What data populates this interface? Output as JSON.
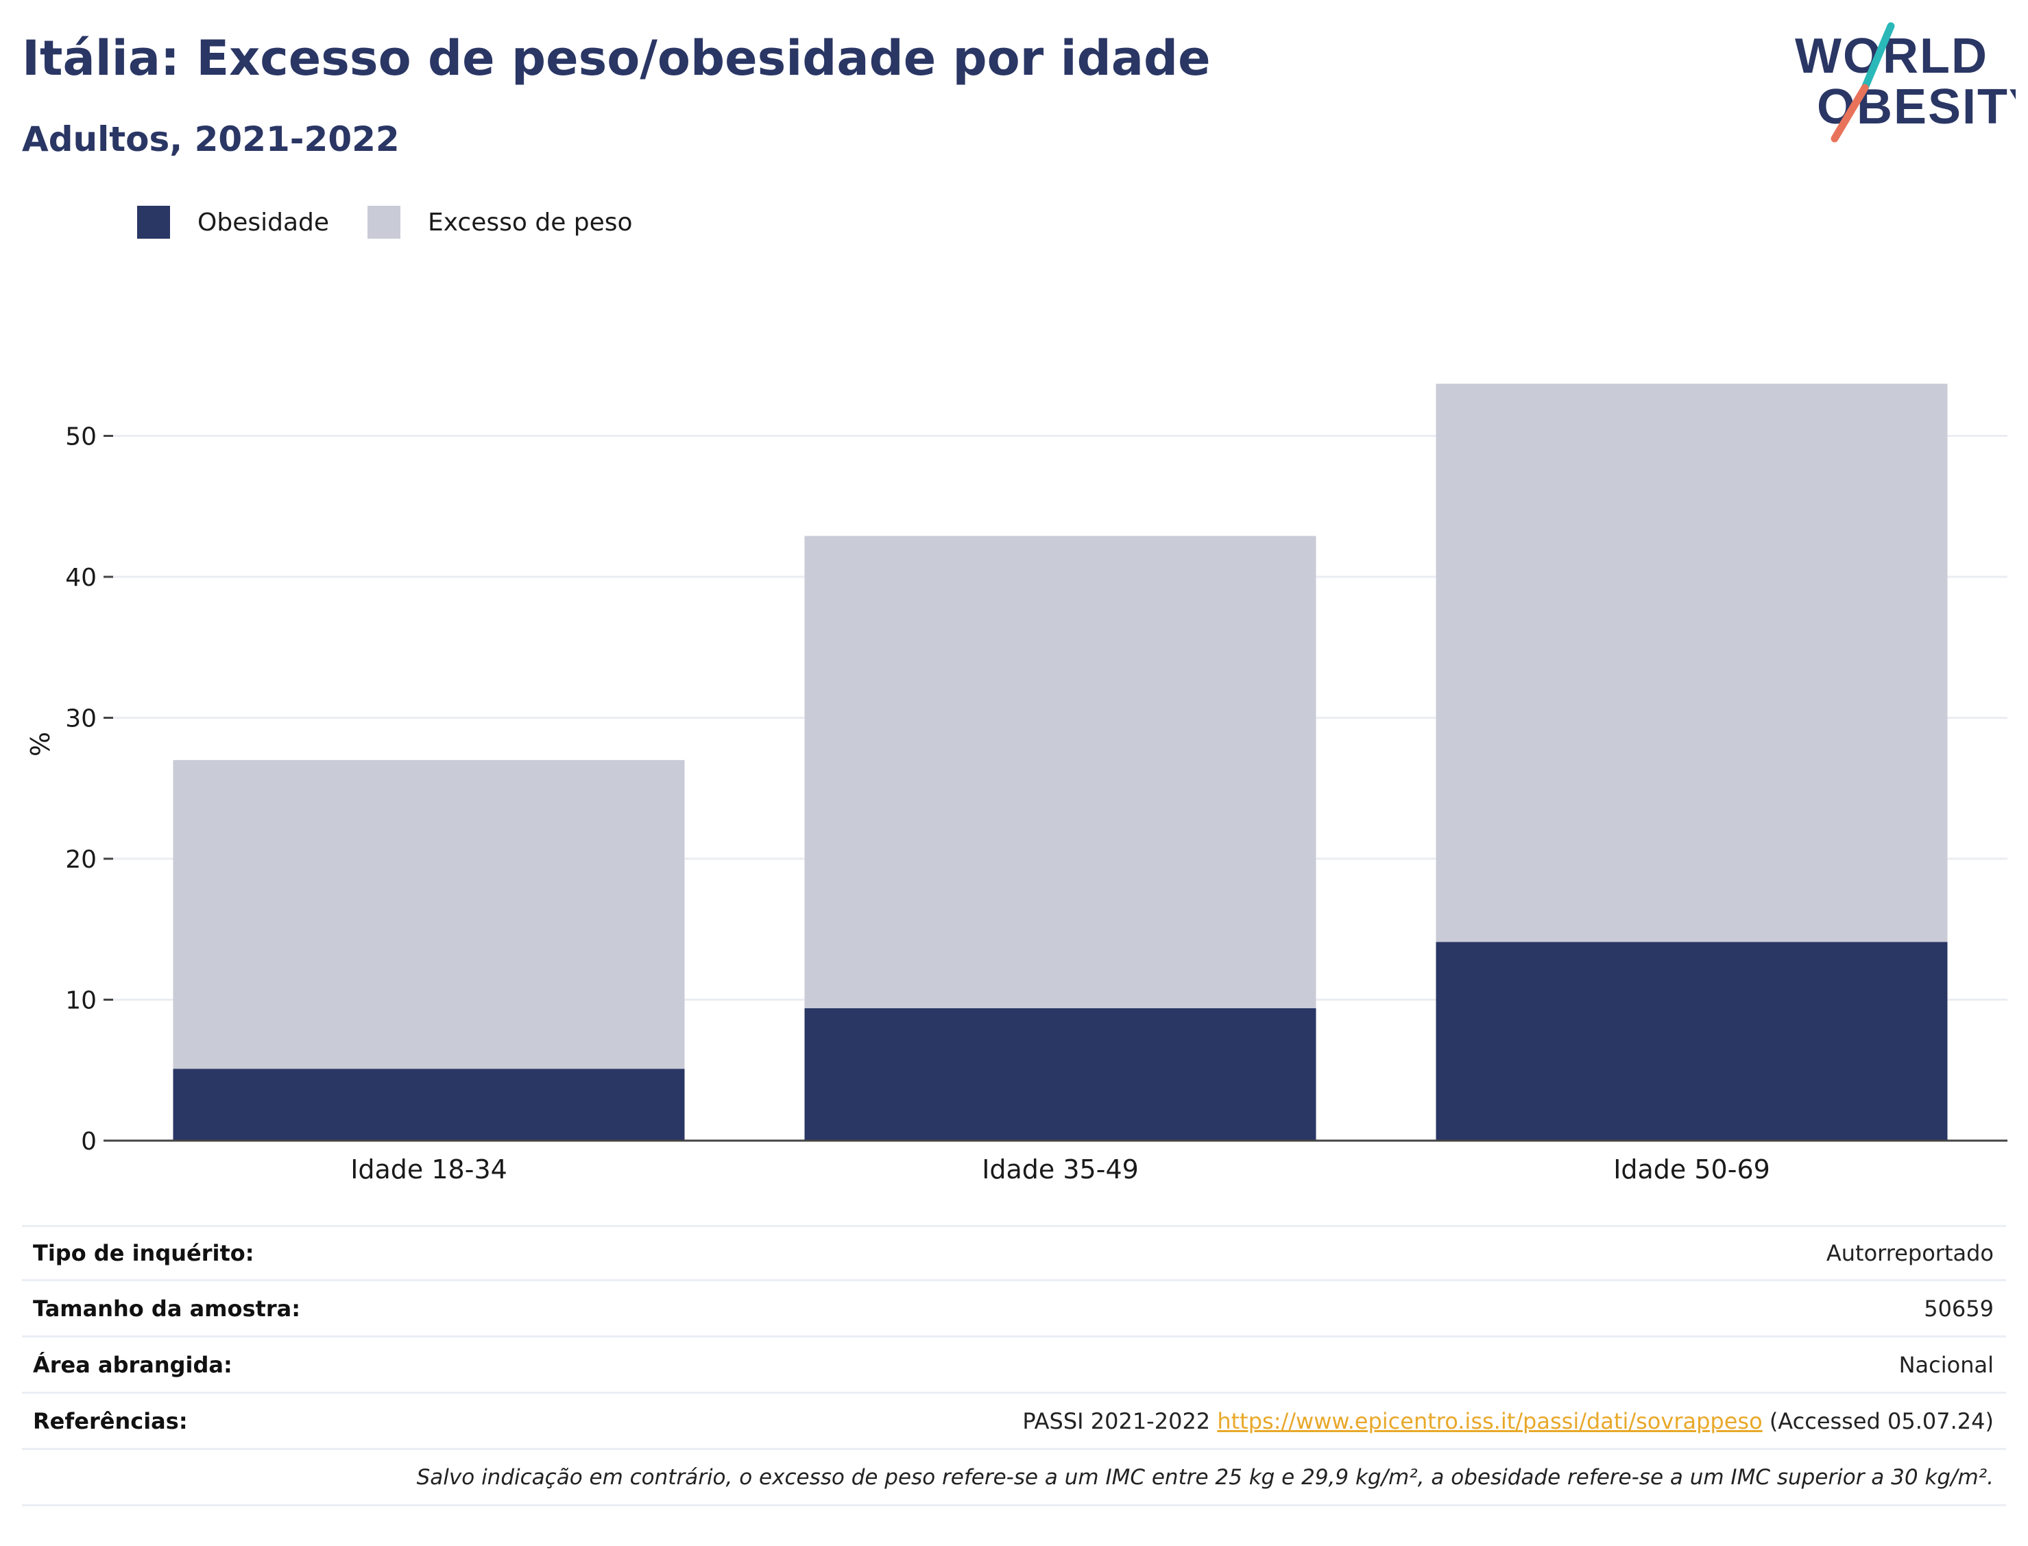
{
  "header": {
    "title": "Itália: Excesso de peso/obesidade por idade",
    "subtitle": "Adultos, 2021-2022"
  },
  "logo": {
    "line1": "WORLD",
    "line2": "OBESITY"
  },
  "colors": {
    "obesity": "#2a3664",
    "overweight": "#c9cbd7",
    "text": "#2a3664",
    "link": "#e8a82a",
    "grid": "#ebedf3",
    "axis": "#444444",
    "logo_slash_top": "#2ab8b8",
    "logo_slash_bottom": "#e8735a"
  },
  "legend": [
    {
      "label": "Obesidade",
      "color": "#2a3664"
    },
    {
      "label": "Excesso de peso",
      "color": "#c9cbd7"
    }
  ],
  "chart_data": {
    "type": "bar",
    "stacked": true,
    "categories": [
      "Idade 18-34",
      "Idade 35-49",
      "Idade 50-69"
    ],
    "series": [
      {
        "name": "Obesidade",
        "values": [
          5.1,
          9.4,
          14.1
        ]
      },
      {
        "name": "Excesso de peso",
        "values": [
          21.9,
          33.5,
          39.6
        ]
      }
    ],
    "ylabel": "%",
    "ylim": [
      0,
      60
    ],
    "yticks": [
      0,
      10,
      20,
      30,
      40,
      50
    ],
    "grid": true,
    "legend_position": "top-left"
  },
  "meta": {
    "rows": [
      {
        "label": "Tipo de inquérito:",
        "value": "Autorreportado"
      },
      {
        "label": "Tamanho da amostra:",
        "value": "50659"
      },
      {
        "label": "Área abrangida:",
        "value": "Nacional"
      }
    ],
    "references": {
      "label": "Referências:",
      "prefix": "PASSI 2021-2022",
      "link": "https://www.epicentro.iss.it/passi/dati/sovrappeso",
      "suffix": "(Accessed 05.07.24)"
    },
    "note": "Salvo indicação em contrário, o excesso de peso refere-se a um IMC entre 25 kg e 29,9 kg/m², a obesidade refere-se a um IMC superior a 30 kg/m²."
  }
}
